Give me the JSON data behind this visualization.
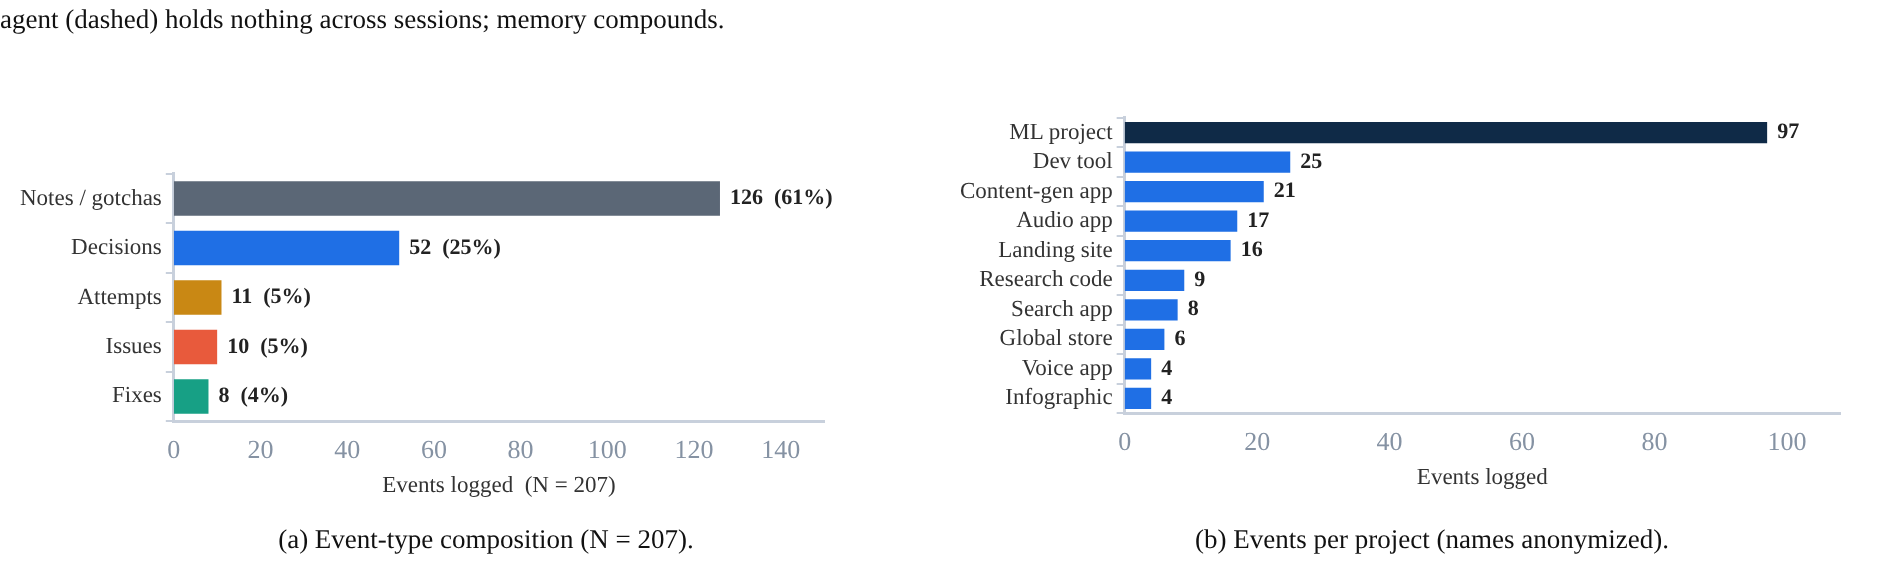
{
  "chart_data": [
    {
      "type": "bar",
      "orientation": "horizontal",
      "categories": [
        "Notes / gotchas",
        "Decisions",
        "Attempts",
        "Issues",
        "Fixes"
      ],
      "values": [
        126,
        52,
        11,
        10,
        8
      ],
      "colors": [
        "#5b6776",
        "#1f6fe5",
        "#c98814",
        "#e85a3c",
        "#17a085"
      ],
      "value_labels": [
        "126  (61%)",
        "52  (25%)",
        "11  (5%)",
        "10  (5%)",
        "8  (4%)"
      ],
      "xlabel": "Events logged  (N = 207)",
      "xlim": [
        0,
        150
      ],
      "xticks": [
        0,
        20,
        40,
        60,
        80,
        100,
        120,
        140
      ],
      "grid": false,
      "legend": false,
      "annotations": [
        "agent (dashed) holds nothing across sessions; memory compounds.",
        "(a) Event-type composition (N = 207)."
      ]
    },
    {
      "type": "bar",
      "orientation": "horizontal",
      "categories": [
        "ML project",
        "Dev tool",
        "Content-gen app",
        "Audio app",
        "Landing site",
        "Research code",
        "Search app",
        "Global store",
        "Voice app",
        "Infographic"
      ],
      "values": [
        97,
        25,
        21,
        17,
        16,
        9,
        8,
        6,
        4,
        4
      ],
      "colors": [
        "#0f2a47",
        "#1f6fe5",
        "#1f6fe5",
        "#1f6fe5",
        "#1f6fe5",
        "#1f6fe5",
        "#1f6fe5",
        "#1f6fe5",
        "#1f6fe5",
        "#1f6fe5"
      ],
      "data_labels": true,
      "xlabel": "Events logged",
      "xlim": [
        0,
        108
      ],
      "xticks": [
        0,
        20,
        40,
        60,
        80,
        100
      ],
      "grid": false,
      "legend": false,
      "annotations": [
        "(b) Events per project (names anonymized)."
      ]
    }
  ]
}
